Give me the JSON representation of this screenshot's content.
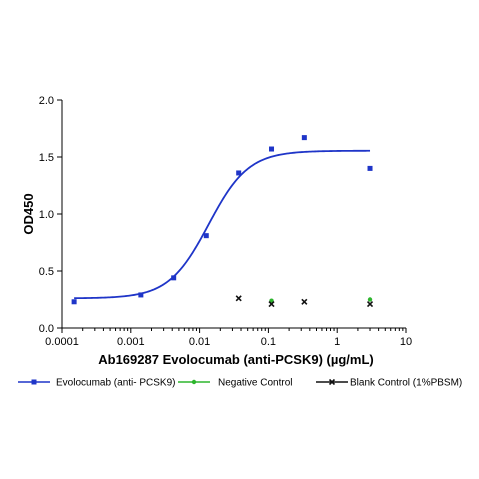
{
  "chart_data": {
    "type": "scatter",
    "xlabel": "Ab169287 Evolocumab (anti-PCSK9) (µg/mL)",
    "ylabel": "OD450",
    "x_scale": "log",
    "xlim": [
      0.0001,
      10
    ],
    "ylim": [
      0,
      2.0
    ],
    "x_ticks": [
      0.0001,
      0.001,
      0.01,
      0.1,
      1,
      10
    ],
    "x_tick_labels": [
      "0.0001",
      "0.001",
      "0.01",
      "0.1",
      "1",
      "10"
    ],
    "y_ticks": [
      0,
      0.5,
      1.0,
      1.5,
      2.0
    ],
    "y_tick_labels": [
      "0.0",
      "0.5",
      "1.0",
      "1.5",
      "2.0"
    ],
    "grid": false,
    "legend_position": "bottom",
    "series": [
      {
        "name": "Evolocumab (anti- PCSK9)",
        "color": "#1f35c8",
        "marker": "square",
        "x": [
          0.00015,
          0.0014,
          0.0042,
          0.0125,
          0.037,
          0.111,
          0.333,
          3.0
        ],
        "y": [
          0.23,
          0.29,
          0.44,
          0.81,
          1.36,
          1.57,
          1.67,
          1.4
        ],
        "fit": {
          "bottom": 0.26,
          "top": 1.555,
          "ec50": 0.0135,
          "hill": 1.5
        }
      },
      {
        "name": "Negative Control",
        "color": "#2db52d",
        "marker": "dot",
        "x": [
          0.111,
          3.0
        ],
        "y": [
          0.24,
          0.25
        ],
        "fit": null
      },
      {
        "name": "Blank Control (1%PBSM)",
        "color": "#111111",
        "marker": "x",
        "x": [
          0.037,
          0.111,
          0.333,
          3.0
        ],
        "y": [
          0.26,
          0.21,
          0.23,
          0.21
        ],
        "fit": null
      }
    ]
  }
}
